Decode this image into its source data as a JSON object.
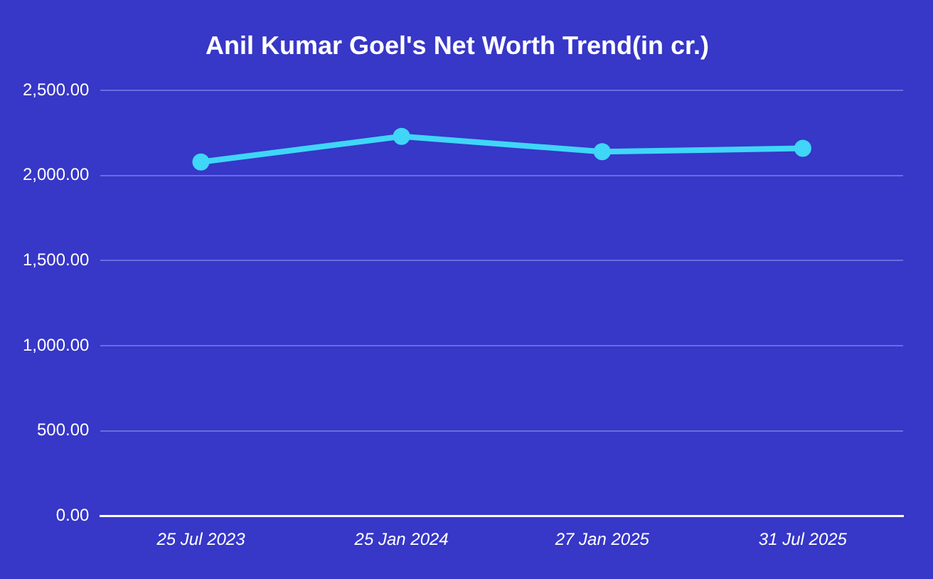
{
  "chart_data": {
    "type": "line",
    "title": "Anil Kumar Goel's Net Worth Trend(in cr.)",
    "categories": [
      "25 Jul 2023",
      "25 Jan 2024",
      "27 Jan 2025",
      "31 Jul 2025"
    ],
    "series": [
      {
        "color": "#3fd6f8",
        "values": [
          2080,
          2230,
          2140,
          2160
        ]
      }
    ],
    "ylim": [
      0,
      2500
    ],
    "yticks": [
      {
        "value": 0,
        "label": "0.00"
      },
      {
        "value": 500,
        "label": "500.00"
      },
      {
        "value": 1000,
        "label": "1,000.00"
      },
      {
        "value": 1500,
        "label": "1,500.00"
      },
      {
        "value": 2000,
        "label": "2,000.00"
      },
      {
        "value": 2500,
        "label": "2,500.00"
      }
    ],
    "grid": "y",
    "legend": false,
    "marker": "circle",
    "line_style": "solid"
  }
}
